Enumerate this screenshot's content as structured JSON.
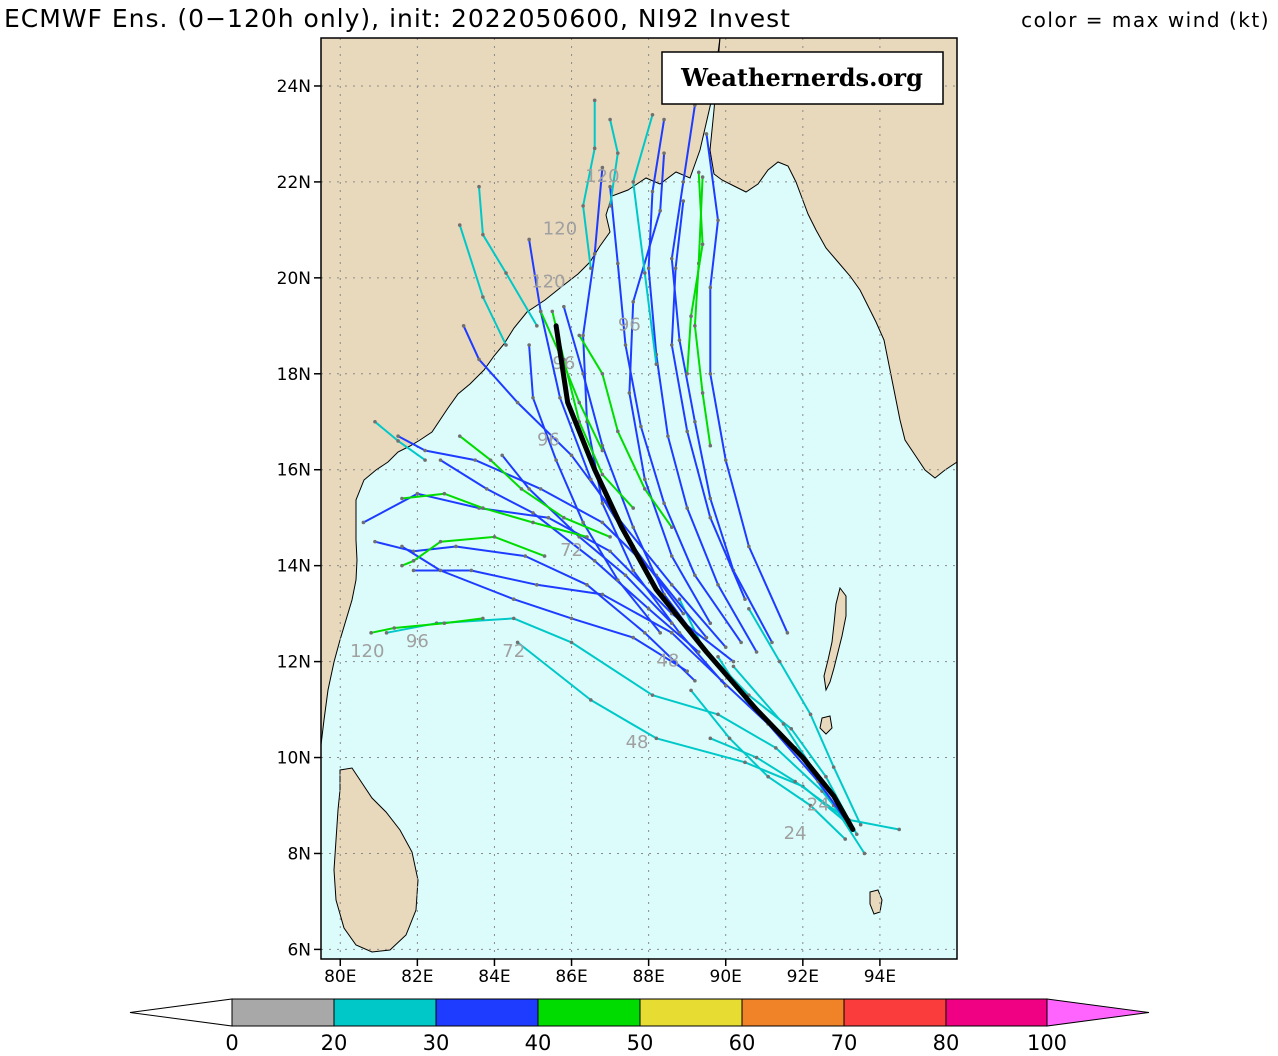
{
  "header": {
    "title": "ECMWF Ens. (0−120h only), init: 2022050600, NI92 Invest",
    "legend_note": "color = max wind (kt)"
  },
  "watermark": "Weathernerds.org",
  "axes": {
    "lat_labels": [
      "6N",
      "8N",
      "10N",
      "12N",
      "14N",
      "16N",
      "18N",
      "20N",
      "22N",
      "24N"
    ],
    "lon_labels": [
      "80E",
      "82E",
      "84E",
      "86E",
      "88E",
      "90E",
      "92E",
      "94E"
    ]
  },
  "colorbar": {
    "ticks": [
      "0",
      "20",
      "30",
      "40",
      "50",
      "60",
      "70",
      "80",
      "100"
    ],
    "colors": [
      "#a8a8a8",
      "#00c8c8",
      "#1e3cff",
      "#00dc00",
      "#e6dc32",
      "#f08228",
      "#fa3c3c",
      "#f00082",
      "#ff64ff"
    ]
  },
  "map_colors": {
    "ocean": "#dcfcfc",
    "land": "#e8d8bc",
    "grid": "#8a8a8a",
    "mean_track": "#000000"
  },
  "forecast_hour_labels": [
    "120",
    "120",
    "120",
    "120",
    "96",
    "96",
    "96",
    "96",
    "72",
    "72",
    "48",
    "48",
    "24",
    "24"
  ],
  "chart_data": {
    "type": "map",
    "xlim": [
      79.5,
      96.0
    ],
    "ylim": [
      5.8,
      25.0
    ],
    "ensemble_mean_track": [
      [
        93.3,
        8.5
      ],
      [
        92.8,
        9.2
      ],
      [
        92.0,
        10.0
      ],
      [
        90.8,
        11.0
      ],
      [
        89.5,
        12.2
      ],
      [
        88.2,
        13.5
      ],
      [
        87.3,
        14.8
      ],
      [
        86.6,
        16.0
      ],
      [
        85.9,
        17.4
      ],
      [
        85.6,
        19.0
      ]
    ],
    "members": [
      {
        "wind": "20-30",
        "points": [
          [
            93.3,
            8.5
          ],
          [
            92.5,
            9.3
          ],
          [
            91.3,
            10.2
          ],
          [
            89.8,
            10.9
          ],
          [
            88.1,
            11.3
          ],
          [
            86.0,
            12.4
          ],
          [
            84.5,
            12.9
          ],
          [
            82.5,
            12.8
          ],
          [
            81.2,
            12.6
          ]
        ]
      },
      {
        "wind": "20-30",
        "points": [
          [
            93.2,
            8.6
          ],
          [
            92.0,
            9.4
          ],
          [
            90.5,
            9.9
          ],
          [
            88.2,
            10.4
          ],
          [
            86.5,
            11.2
          ],
          [
            84.6,
            12.4
          ]
        ]
      },
      {
        "wind": "20-30",
        "points": [
          [
            93.4,
            8.4
          ],
          [
            92.6,
            9.6
          ],
          [
            91.7,
            10.6
          ],
          [
            90.6,
            11.3
          ],
          [
            89.4,
            12.3
          ],
          [
            88.8,
            13.3
          ]
        ]
      },
      {
        "wind": "20-30",
        "points": [
          [
            93.5,
            8.6
          ],
          [
            92.8,
            9.8
          ],
          [
            92.2,
            10.9
          ],
          [
            91.4,
            12.0
          ],
          [
            90.6,
            13.1
          ]
        ]
      },
      {
        "wind": "20-30",
        "points": [
          [
            93.1,
            8.3
          ],
          [
            92.2,
            9.0
          ],
          [
            91.1,
            9.6
          ],
          [
            90.1,
            10.4
          ],
          [
            89.1,
            11.4
          ]
        ]
      },
      {
        "wind": "20-30",
        "points": [
          [
            94.5,
            8.5
          ],
          [
            93.2,
            8.7
          ],
          [
            92.4,
            9.6
          ],
          [
            91.5,
            10.7
          ],
          [
            90.2,
            11.9
          ]
        ]
      },
      {
        "wind": "20-30",
        "points": [
          [
            93.0,
            8.8
          ],
          [
            91.8,
            9.5
          ],
          [
            90.8,
            10.0
          ],
          [
            89.6,
            10.4
          ]
        ]
      },
      {
        "wind": "20-30",
        "points": [
          [
            93.6,
            8.0
          ],
          [
            92.8,
            9.0
          ],
          [
            91.8,
            10.2
          ],
          [
            90.6,
            11.1
          ],
          [
            89.8,
            12.1
          ]
        ]
      },
      {
        "wind": "30-40",
        "points": [
          [
            93.2,
            8.6
          ],
          [
            92.4,
            9.5
          ],
          [
            91.1,
            10.7
          ],
          [
            89.9,
            11.6
          ],
          [
            88.6,
            12.6
          ],
          [
            86.8,
            13.4
          ],
          [
            85.1,
            13.6
          ],
          [
            83.4,
            13.9
          ],
          [
            81.9,
            13.9
          ]
        ]
      },
      {
        "wind": "30-40",
        "points": [
          [
            89.2,
            11.6
          ],
          [
            87.9,
            12.6
          ],
          [
            86.4,
            13.6
          ],
          [
            84.8,
            14.2
          ],
          [
            83.0,
            14.4
          ],
          [
            81.9,
            14.3
          ],
          [
            80.9,
            14.5
          ]
        ]
      },
      {
        "wind": "30-40",
        "points": [
          [
            89.0,
            11.8
          ],
          [
            87.6,
            12.5
          ],
          [
            86.0,
            12.9
          ],
          [
            84.5,
            13.3
          ],
          [
            82.6,
            13.9
          ],
          [
            81.6,
            14.4
          ]
        ]
      },
      {
        "wind": "30-40",
        "points": [
          [
            90.2,
            12.0
          ],
          [
            88.6,
            13.0
          ],
          [
            87.0,
            14.3
          ],
          [
            85.4,
            15.0
          ],
          [
            83.6,
            15.2
          ],
          [
            82.0,
            15.5
          ],
          [
            80.6,
            14.9
          ]
        ]
      },
      {
        "wind": "30-40",
        "points": [
          [
            89.5,
            12.5
          ],
          [
            88.2,
            13.8
          ],
          [
            86.8,
            14.9
          ],
          [
            85.2,
            15.6
          ],
          [
            83.5,
            16.2
          ],
          [
            82.2,
            16.4
          ],
          [
            81.5,
            16.7
          ]
        ]
      },
      {
        "wind": "30-40",
        "points": [
          [
            90.0,
            12.3
          ],
          [
            88.6,
            13.6
          ],
          [
            87.2,
            15.0
          ],
          [
            86.0,
            16.3
          ],
          [
            84.6,
            17.4
          ],
          [
            83.6,
            18.3
          ],
          [
            83.2,
            19.0
          ]
        ]
      },
      {
        "wind": "30-40",
        "points": [
          [
            89.7,
            12.0
          ],
          [
            88.4,
            13.4
          ],
          [
            87.6,
            14.8
          ],
          [
            86.8,
            16.5
          ],
          [
            86.3,
            18.0
          ],
          [
            85.8,
            19.4
          ]
        ]
      },
      {
        "wind": "30-40",
        "points": [
          [
            90.4,
            12.4
          ],
          [
            89.2,
            13.8
          ],
          [
            88.4,
            15.3
          ],
          [
            87.8,
            16.9
          ],
          [
            87.4,
            18.6
          ],
          [
            87.2,
            20.3
          ],
          [
            87.0,
            21.9
          ]
        ]
      },
      {
        "wind": "30-40",
        "points": [
          [
            90.8,
            12.2
          ],
          [
            89.8,
            13.6
          ],
          [
            89.0,
            15.2
          ],
          [
            88.5,
            16.7
          ],
          [
            88.2,
            18.4
          ],
          [
            88.0,
            20.2
          ],
          [
            88.1,
            21.8
          ],
          [
            88.4,
            23.3
          ]
        ]
      },
      {
        "wind": "30-40",
        "points": [
          [
            91.2,
            12.4
          ],
          [
            90.2,
            13.9
          ],
          [
            89.6,
            15.4
          ],
          [
            89.2,
            17.0
          ],
          [
            88.8,
            18.7
          ],
          [
            88.6,
            20.4
          ],
          [
            88.9,
            22.0
          ],
          [
            89.2,
            23.6
          ]
        ]
      },
      {
        "wind": "30-40",
        "points": [
          [
            91.6,
            12.6
          ],
          [
            90.6,
            14.4
          ],
          [
            90.0,
            16.2
          ],
          [
            89.6,
            18.0
          ],
          [
            89.6,
            19.8
          ],
          [
            89.8,
            21.2
          ],
          [
            89.5,
            23.0
          ]
        ]
      },
      {
        "wind": "30-40",
        "points": [
          [
            90.0,
            11.5
          ],
          [
            88.8,
            12.6
          ],
          [
            87.6,
            13.9
          ],
          [
            86.8,
            15.3
          ],
          [
            86.4,
            17.0
          ],
          [
            86.3,
            18.8
          ],
          [
            86.6,
            20.5
          ],
          [
            86.8,
            22.3
          ]
        ]
      },
      {
        "wind": "30-40",
        "points": [
          [
            89.6,
            12.8
          ],
          [
            88.6,
            14.2
          ],
          [
            87.9,
            15.8
          ],
          [
            87.5,
            17.6
          ],
          [
            87.6,
            19.5
          ],
          [
            88.3,
            21.4
          ],
          [
            88.4,
            22.6
          ]
        ]
      },
      {
        "wind": "30-40",
        "points": [
          [
            90.5,
            13.3
          ],
          [
            89.6,
            15.0
          ],
          [
            89.0,
            16.8
          ],
          [
            88.6,
            18.6
          ],
          [
            88.7,
            20.2
          ],
          [
            88.9,
            21.6
          ]
        ]
      },
      {
        "wind": "30-40",
        "points": [
          [
            88.9,
            13.0
          ],
          [
            87.6,
            14.4
          ],
          [
            86.5,
            15.8
          ],
          [
            85.7,
            17.5
          ],
          [
            85.2,
            19.3
          ],
          [
            84.9,
            20.8
          ]
        ]
      },
      {
        "wind": "30-40",
        "points": [
          [
            89.3,
            12.2
          ],
          [
            88.0,
            13.1
          ],
          [
            86.6,
            14.1
          ],
          [
            85.0,
            15.1
          ],
          [
            83.8,
            15.6
          ],
          [
            82.6,
            16.2
          ]
        ]
      },
      {
        "wind": "30-40",
        "points": [
          [
            88.6,
            12.8
          ],
          [
            87.4,
            13.8
          ],
          [
            86.2,
            14.6
          ],
          [
            84.9,
            15.6
          ],
          [
            84.2,
            16.3
          ]
        ]
      },
      {
        "wind": "30-40",
        "points": [
          [
            88.3,
            12.6
          ],
          [
            87.2,
            13.7
          ],
          [
            86.3,
            14.9
          ],
          [
            85.6,
            16.2
          ],
          [
            85.0,
            17.5
          ],
          [
            84.9,
            18.6
          ]
        ]
      },
      {
        "wind": "40-50",
        "points": [
          [
            87.6,
            15.2
          ],
          [
            86.8,
            15.9
          ],
          [
            86.2,
            17.0
          ],
          [
            85.8,
            18.3
          ],
          [
            85.5,
            19.3
          ]
        ]
      },
      {
        "wind": "40-50",
        "points": [
          [
            88.6,
            14.8
          ],
          [
            87.9,
            15.6
          ],
          [
            87.2,
            16.8
          ],
          [
            86.8,
            18.0
          ],
          [
            86.2,
            18.8
          ]
        ]
      },
      {
        "wind": "40-50",
        "points": [
          [
            87.0,
            14.6
          ],
          [
            85.8,
            15.0
          ],
          [
            84.7,
            15.6
          ],
          [
            83.9,
            16.2
          ],
          [
            83.1,
            16.7
          ]
        ]
      },
      {
        "wind": "40-50",
        "points": [
          [
            86.4,
            14.6
          ],
          [
            85.0,
            14.9
          ],
          [
            83.7,
            15.2
          ],
          [
            82.7,
            15.5
          ],
          [
            81.6,
            15.4
          ]
        ]
      },
      {
        "wind": "40-50",
        "points": [
          [
            85.3,
            14.2
          ],
          [
            84.0,
            14.6
          ],
          [
            82.6,
            14.5
          ],
          [
            81.9,
            14.1
          ],
          [
            81.6,
            14.0
          ]
        ]
      },
      {
        "wind": "40-50",
        "points": [
          [
            83.7,
            12.9
          ],
          [
            82.7,
            12.8
          ],
          [
            81.4,
            12.7
          ],
          [
            80.8,
            12.6
          ]
        ]
      },
      {
        "wind": "40-50",
        "points": [
          [
            89.6,
            16.5
          ],
          [
            89.4,
            17.6
          ],
          [
            89.2,
            19.0
          ],
          [
            89.3,
            20.3
          ],
          [
            89.4,
            22.1
          ]
        ]
      },
      {
        "wind": "40-50",
        "points": [
          [
            89.0,
            18.0
          ],
          [
            89.1,
            19.2
          ],
          [
            89.4,
            20.7
          ],
          [
            89.3,
            22.2
          ]
        ]
      },
      {
        "wind": "40-50",
        "points": [
          [
            86.8,
            16.4
          ],
          [
            86.2,
            17.4
          ],
          [
            85.7,
            18.4
          ],
          [
            85.2,
            19.3
          ]
        ]
      },
      {
        "wind": "20-30",
        "points": [
          [
            88.2,
            18.2
          ],
          [
            87.9,
            20.1
          ],
          [
            87.6,
            22.0
          ],
          [
            88.1,
            23.4
          ]
        ]
      },
      {
        "wind": "20-30",
        "points": [
          [
            85.1,
            19.0
          ],
          [
            84.3,
            20.1
          ],
          [
            83.7,
            20.9
          ],
          [
            83.6,
            21.9
          ]
        ]
      },
      {
        "wind": "20-30",
        "points": [
          [
            84.3,
            18.6
          ],
          [
            83.7,
            19.6
          ],
          [
            83.1,
            21.1
          ]
        ]
      },
      {
        "wind": "20-30",
        "points": [
          [
            86.5,
            20.2
          ],
          [
            86.3,
            21.5
          ],
          [
            86.6,
            22.7
          ],
          [
            86.6,
            23.7
          ]
        ]
      },
      {
        "wind": "20-30",
        "points": [
          [
            87.0,
            21.5
          ],
          [
            87.2,
            22.6
          ],
          [
            87.0,
            23.3
          ]
        ]
      },
      {
        "wind": "20-30",
        "points": [
          [
            82.2,
            16.2
          ],
          [
            81.5,
            16.6
          ],
          [
            80.9,
            17.0
          ]
        ]
      }
    ],
    "forecast_hour_label_positions": [
      {
        "label": "120",
        "lon": 86.8,
        "lat": 22.0
      },
      {
        "label": "120",
        "lon": 85.7,
        "lat": 20.9
      },
      {
        "label": "120",
        "lon": 85.4,
        "lat": 19.8
      },
      {
        "label": "120",
        "lon": 80.7,
        "lat": 12.1
      },
      {
        "label": "96",
        "lon": 82.0,
        "lat": 12.3
      },
      {
        "label": "96",
        "lon": 85.4,
        "lat": 16.5
      },
      {
        "label": "96",
        "lon": 85.8,
        "lat": 18.1
      },
      {
        "label": "96",
        "lon": 87.5,
        "lat": 18.9
      },
      {
        "label": "72",
        "lon": 84.5,
        "lat": 12.1
      },
      {
        "label": "72",
        "lon": 86.0,
        "lat": 14.2
      },
      {
        "label": "48",
        "lon": 87.7,
        "lat": 10.2
      },
      {
        "label": "48",
        "lon": 88.5,
        "lat": 11.9
      },
      {
        "label": "24",
        "lon": 91.8,
        "lat": 8.3
      },
      {
        "label": "24",
        "lon": 92.4,
        "lat": 8.9
      }
    ]
  }
}
